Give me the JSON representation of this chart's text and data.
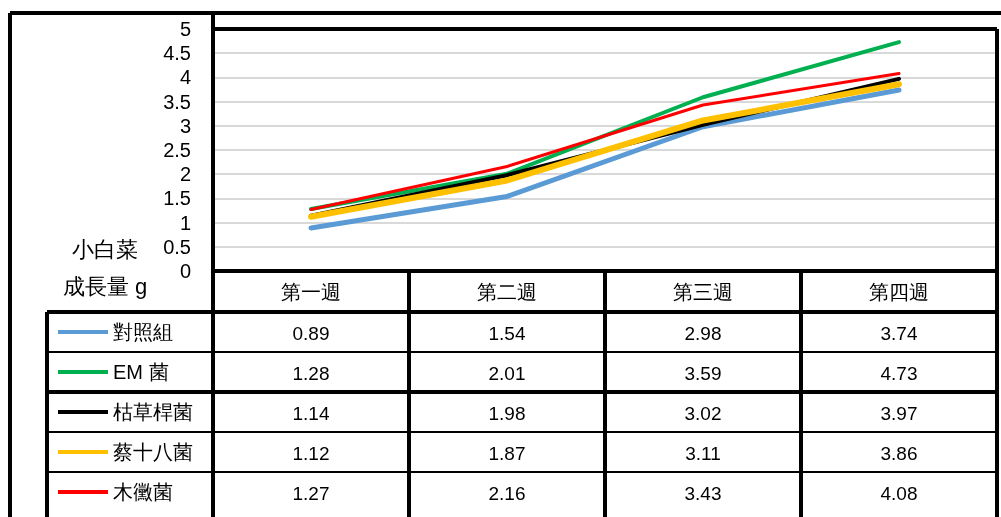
{
  "chart_data": {
    "type": "line",
    "ylabel": "小白菜成長量 g",
    "categories": [
      "第一週",
      "第二週",
      "第三週",
      "第四週"
    ],
    "series": [
      {
        "name": "對照組",
        "color": "#5b9bd5",
        "values": [
          0.89,
          1.54,
          2.98,
          3.74
        ]
      },
      {
        "name": "EM 菌",
        "color": "#00b050",
        "values": [
          1.28,
          2.01,
          3.59,
          4.73
        ]
      },
      {
        "name": "枯草桿菌",
        "color": "#000000",
        "values": [
          1.14,
          1.98,
          3.02,
          3.97
        ]
      },
      {
        "name": "蔡十八菌",
        "color": "#ffc000",
        "values": [
          1.12,
          1.87,
          3.11,
          3.86
        ]
      },
      {
        "name": "木黴菌",
        "color": "#ff0000",
        "values": [
          1.27,
          2.16,
          3.43,
          4.08
        ]
      }
    ],
    "ylim": [
      0,
      5
    ],
    "yticks": [
      0,
      0.5,
      1,
      1.5,
      2,
      2.5,
      3,
      3.5,
      4,
      4.5,
      5
    ],
    "grid": "y",
    "legend": "bottom left",
    "marker": "none",
    "line_style": "solid",
    "data_labels": true
  }
}
